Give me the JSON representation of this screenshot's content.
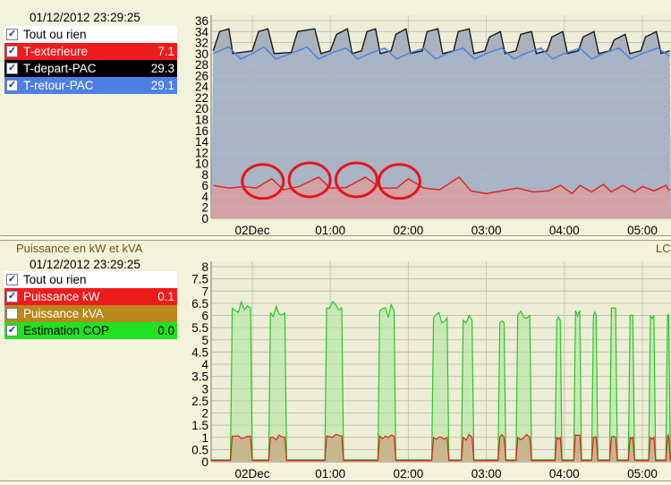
{
  "top_panel": {
    "timestamp": "01/12/2012 23:29:25",
    "legend": [
      {
        "label": "Tout ou rien",
        "value": "",
        "checked": true,
        "bg": "#ffffff",
        "fg": "#000000"
      },
      {
        "label": "T-exterieure",
        "value": "7.1",
        "checked": true,
        "bg": "#ee1c1c",
        "fg": "#ffffff"
      },
      {
        "label": "T-depart-PAC",
        "value": "29.3",
        "checked": true,
        "bg": "#000000",
        "fg": "#ffffff"
      },
      {
        "label": "T-retour-PAC",
        "value": "29.1",
        "checked": true,
        "bg": "#4e7fe6",
        "fg": "#ffffff"
      }
    ]
  },
  "bottom_panel": {
    "title": "Puissance en kW et kVA",
    "right_label": "LC",
    "timestamp": "01/12/2012 23:29:25",
    "legend": [
      {
        "label": "Tout ou rien",
        "value": "",
        "checked": true,
        "bg": "#ffffff",
        "fg": "#000000"
      },
      {
        "label": "Puissance kW",
        "value": "0.1",
        "checked": true,
        "bg": "#ee1c1c",
        "fg": "#ffffff"
      },
      {
        "label": "Puissance kVA",
        "value": "",
        "checked": false,
        "bg": "#b8881c",
        "fg": "#ffffff"
      },
      {
        "label": "Estimation COP",
        "value": "0.0",
        "checked": true,
        "bg": "#22e022",
        "fg": "#000000"
      }
    ]
  },
  "x_tick_labels": [
    "02Dec",
    "01:00",
    "02:00",
    "03:00",
    "04:00",
    "05:00"
  ],
  "chart_data": [
    {
      "type": "area",
      "ylim": [
        0,
        36
      ],
      "yticks": [
        0,
        2,
        4,
        6,
        8,
        10,
        12,
        14,
        16,
        18,
        20,
        22,
        24,
        26,
        28,
        30,
        32,
        34,
        36
      ],
      "x_ticks_hours": [
        0,
        1,
        2,
        3,
        4,
        5
      ],
      "series_colors": {
        "T-depart-PAC": "#1a1a1a",
        "T-retour-PAC": "#4e7fe6",
        "T-exterieure": "#e02020"
      },
      "annotations": {
        "type": "red-circles",
        "count": 4
      },
      "series": [
        {
          "name": "T-depart-PAC",
          "x": [
            -0.5,
            -0.42,
            -0.3,
            -0.25,
            0.0,
            0.08,
            0.2,
            0.28,
            0.5,
            0.58,
            0.8,
            0.88,
            1.0,
            1.08,
            1.22,
            1.28,
            1.4,
            1.47,
            1.58,
            1.64,
            1.78,
            1.84,
            1.97,
            2.03,
            2.18,
            2.24,
            2.38,
            2.44,
            2.58,
            2.64,
            2.78,
            2.84,
            2.98,
            3.04,
            3.18,
            3.24,
            3.38,
            3.44,
            3.58,
            3.64,
            3.78,
            3.84,
            3.98,
            4.04,
            4.18,
            4.24,
            4.38,
            4.44,
            4.58,
            4.64,
            4.78,
            4.84,
            4.98,
            5.04,
            5.18,
            5.24,
            5.35
          ],
          "values": [
            30.5,
            34,
            34.5,
            30,
            30.5,
            34,
            34.5,
            30,
            30.2,
            34,
            34.5,
            30,
            30.5,
            33.5,
            34.5,
            30,
            30.5,
            34,
            34.5,
            30,
            30.5,
            33.5,
            34.5,
            30,
            30.5,
            34,
            34.5,
            30,
            30.5,
            34,
            34.5,
            30,
            30.5,
            33,
            34,
            30,
            30.5,
            33.5,
            34,
            30,
            30.5,
            33,
            34,
            30,
            30.5,
            33,
            34,
            30,
            30.5,
            32.5,
            33.5,
            30,
            30.5,
            33,
            34,
            30,
            30.5
          ]
        },
        {
          "name": "T-retour-PAC",
          "x": [
            -0.5,
            -0.3,
            -0.15,
            0.0,
            0.15,
            0.3,
            0.5,
            0.7,
            0.85,
            1.0,
            1.2,
            1.35,
            1.5,
            1.7,
            1.85,
            2.0,
            2.2,
            2.35,
            2.5,
            2.7,
            2.85,
            3.0,
            3.2,
            3.35,
            3.5,
            3.7,
            3.85,
            4.0,
            4.2,
            4.35,
            4.5,
            4.7,
            4.85,
            5.0,
            5.2,
            5.35
          ],
          "values": [
            30,
            31.2,
            29,
            30,
            31.2,
            29,
            30,
            31.2,
            29,
            30,
            31,
            29,
            30,
            31,
            29,
            30,
            31,
            29,
            30,
            31,
            29,
            30,
            31,
            29,
            30,
            31,
            29,
            30,
            31,
            29,
            30,
            31,
            29,
            30,
            31,
            29.5
          ]
        },
        {
          "name": "T-exterieure",
          "x": [
            -0.5,
            -0.3,
            -0.1,
            0.05,
            0.25,
            0.4,
            0.6,
            0.85,
            1.0,
            1.2,
            1.45,
            1.65,
            1.85,
            2.0,
            2.2,
            2.4,
            2.65,
            2.8,
            3.0,
            3.2,
            3.4,
            3.6,
            3.8,
            3.95,
            4.1,
            4.2,
            4.35,
            4.5,
            4.6,
            4.75,
            4.9,
            5.0,
            5.15,
            5.3,
            5.35
          ],
          "values": [
            6,
            5.5,
            5.8,
            5.5,
            7.2,
            5.2,
            5.8,
            7.5,
            5.5,
            5.6,
            7.5,
            5.5,
            5.5,
            7.2,
            5.5,
            5.2,
            7.5,
            5.0,
            4.5,
            5.0,
            5.5,
            4.8,
            5.0,
            6.0,
            4.5,
            6.0,
            4.8,
            6.2,
            4.8,
            6.0,
            4.8,
            5.8,
            5.0,
            6.0,
            5.0
          ]
        }
      ]
    },
    {
      "type": "area",
      "ylim": [
        0,
        8
      ],
      "yticks": [
        0,
        0.5,
        1,
        1.5,
        2,
        2.5,
        3,
        3.5,
        4,
        4.5,
        5,
        5.5,
        6,
        6.5,
        7,
        7.5,
        8
      ],
      "x_ticks_hours": [
        0,
        1,
        2,
        3,
        4,
        5
      ],
      "series_colors": {
        "Estimation COP": "#28c828",
        "Puissance kW": "#e02020"
      },
      "cycles": [
        {
          "start": -0.28,
          "end": 0.0,
          "cop": 6.3,
          "kw": 1.05
        },
        {
          "start": 0.21,
          "end": 0.44,
          "cop": 6.1,
          "kw": 1.0
        },
        {
          "start": 0.93,
          "end": 1.17,
          "cop": 6.3,
          "kw": 1.05
        },
        {
          "start": 1.61,
          "end": 1.84,
          "cop": 6.2,
          "kw": 1.05
        },
        {
          "start": 2.3,
          "end": 2.52,
          "cop": 5.9,
          "kw": 1.0
        },
        {
          "start": 2.68,
          "end": 2.84,
          "cop": 5.8,
          "kw": 1.0
        },
        {
          "start": 3.15,
          "end": 3.25,
          "cop": 5.7,
          "kw": 1.0
        },
        {
          "start": 3.38,
          "end": 3.58,
          "cop": 6.0,
          "kw": 1.0
        },
        {
          "start": 3.88,
          "end": 3.97,
          "cop": 5.8,
          "kw": 1.0
        },
        {
          "start": 4.12,
          "end": 4.22,
          "cop": 6.2,
          "kw": 1.1
        },
        {
          "start": 4.35,
          "end": 4.43,
          "cop": 6.0,
          "kw": 1.0
        },
        {
          "start": 4.58,
          "end": 4.68,
          "cop": 6.3,
          "kw": 1.0
        },
        {
          "start": 4.82,
          "end": 4.9,
          "cop": 6.0,
          "kw": 1.0
        },
        {
          "start": 5.08,
          "end": 5.17,
          "cop": 6.0,
          "kw": 1.0
        },
        {
          "start": 5.3,
          "end": 5.36,
          "cop": 6.0,
          "kw": 1.0
        }
      ],
      "baseline": {
        "cop": 0.08,
        "kw": 0.05
      }
    }
  ]
}
